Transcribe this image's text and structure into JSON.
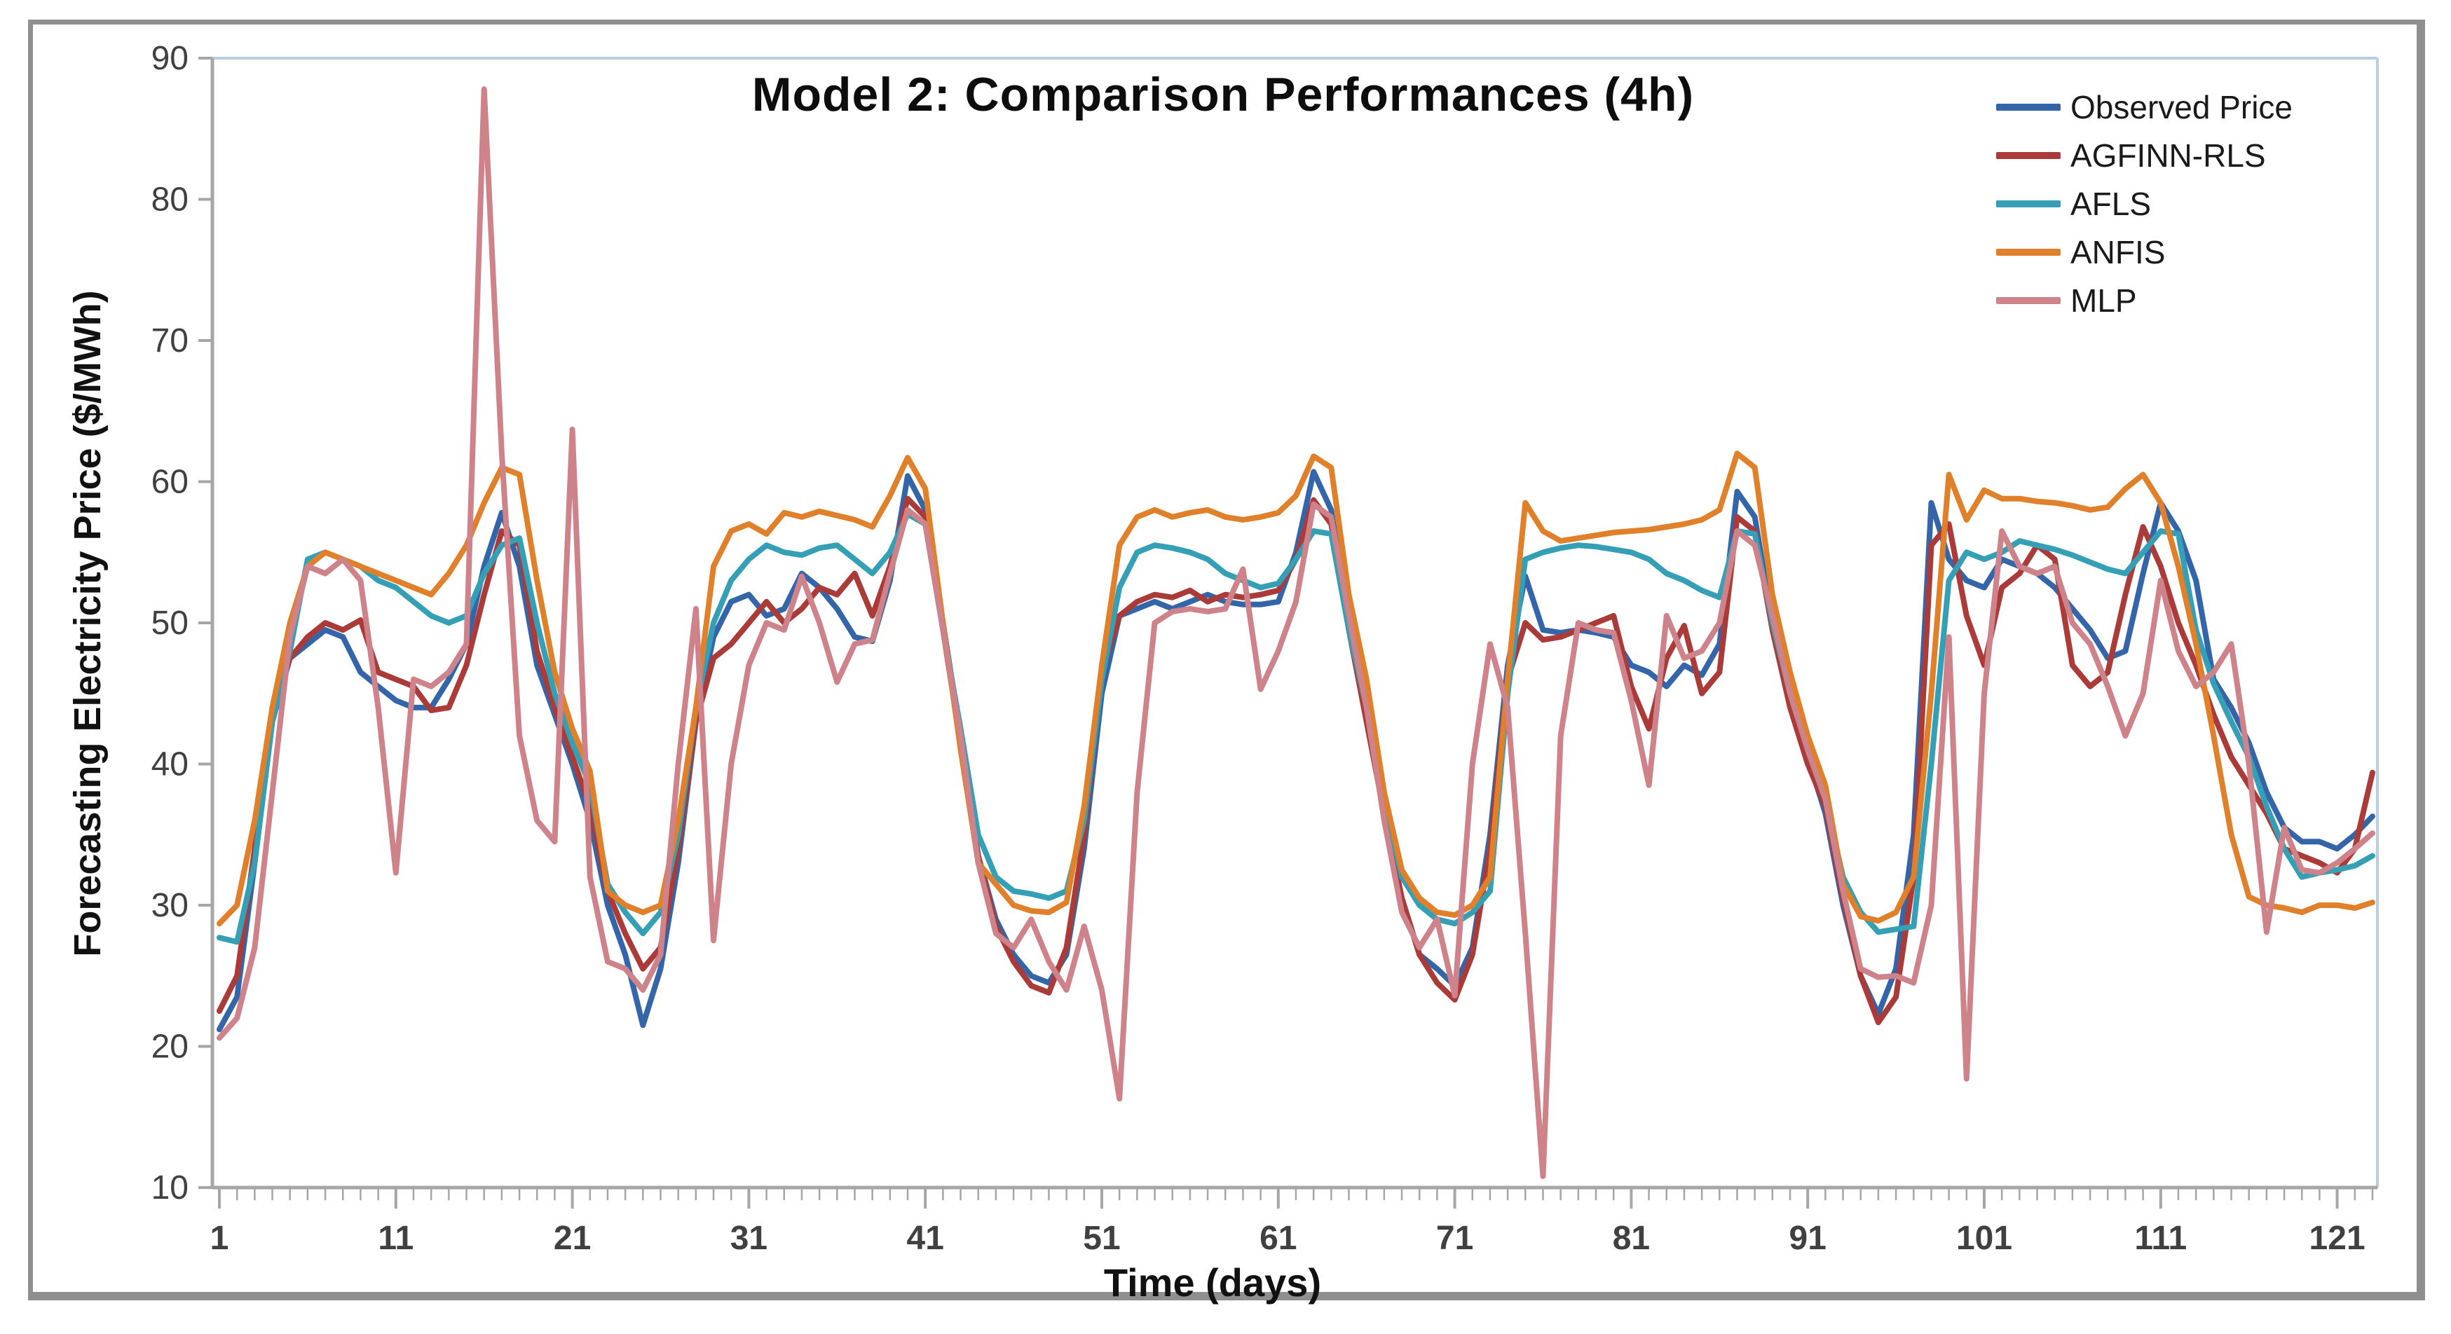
{
  "chart_data": {
    "type": "line",
    "title": "Model 2: Comparison Performances (4h)",
    "xlabel": "Time (days)",
    "ylabel": "Forecasting Electricity Price ($/MWh)",
    "xlim": [
      1,
      123
    ],
    "ylim": [
      10,
      90
    ],
    "x_ticks": [
      1,
      11,
      21,
      31,
      41,
      51,
      61,
      71,
      81,
      91,
      101,
      111,
      121
    ],
    "y_ticks": [
      10,
      20,
      30,
      40,
      50,
      60,
      70,
      80,
      90
    ],
    "x_minor_tick_interval": 1,
    "grid": false,
    "legend_position": "top-right",
    "series": [
      {
        "name": "Observed Price",
        "color": "#3465A8",
        "values": [
          21.2,
          23.5,
          33,
          43,
          47.5,
          48.5,
          49.5,
          49,
          46.5,
          45.5,
          44.5,
          44,
          44,
          46,
          48.5,
          54,
          57.8,
          54,
          47,
          43.5,
          40,
          36,
          30,
          26.5,
          21.5,
          25.5,
          33,
          43,
          49,
          51.5,
          52,
          50.5,
          51,
          53.5,
          52.5,
          51,
          49,
          48.7,
          53,
          60.4,
          58,
          50,
          42,
          33.5,
          29,
          26.5,
          25,
          24.5,
          26.5,
          34,
          45,
          50.5,
          51,
          51.5,
          51,
          51.5,
          52,
          51.5,
          51.3,
          51.3,
          51.5,
          55,
          60.7,
          58,
          50,
          43.5,
          36.5,
          30.5,
          26.5,
          25.5,
          24.3,
          27,
          35,
          47,
          53.3,
          49.5,
          49.3,
          49.5,
          49.3,
          49,
          47,
          46.5,
          45.5,
          47,
          46.3,
          48.5,
          59.3,
          57.5,
          50,
          44.5,
          40.5,
          36.5,
          30,
          25,
          22.3,
          25.5,
          35,
          58.5,
          54.5,
          53,
          52.5,
          54.5,
          54,
          53.5,
          52.5,
          51,
          49.5,
          47.5,
          48,
          53.5,
          58.5,
          56.5,
          53,
          46,
          44,
          41.5,
          38,
          35.5,
          34.5,
          34.5,
          34,
          35,
          36.3
        ]
      },
      {
        "name": "AGFINN-RLS",
        "color": "#AA3B39",
        "values": [
          22.5,
          25,
          34,
          44,
          47.5,
          49,
          50,
          49.5,
          50.2,
          46.5,
          46,
          45.5,
          43.8,
          44,
          47,
          52,
          56.5,
          55.5,
          48,
          44,
          40.5,
          37,
          31,
          28,
          25.5,
          27,
          34,
          43,
          47.5,
          48.5,
          50,
          51.5,
          50,
          51,
          52.5,
          52,
          53.5,
          50.5,
          54,
          58.8,
          57.5,
          49.5,
          41.5,
          33.5,
          28.5,
          26,
          24.3,
          23.8,
          27,
          35,
          46.5,
          50.5,
          51.5,
          52,
          51.8,
          52.3,
          51.5,
          52,
          51.8,
          52,
          52.3,
          54.5,
          58.7,
          57,
          49.5,
          43,
          36.5,
          30.5,
          26.5,
          24.5,
          23.3,
          26.5,
          34,
          46,
          50,
          48.8,
          49,
          49.5,
          50,
          50.5,
          45.5,
          42.5,
          47.5,
          49.8,
          45,
          46.5,
          57.5,
          56.5,
          49.5,
          44,
          40,
          37,
          30.5,
          25,
          21.7,
          23.5,
          32,
          55.5,
          57,
          50.5,
          47,
          52.5,
          53.5,
          55.5,
          54.5,
          47,
          45.5,
          46.5,
          52,
          56.8,
          54,
          50,
          47,
          43.5,
          40.5,
          38.5,
          36.5,
          34,
          33.5,
          33,
          32.3,
          34,
          39.4
        ]
      },
      {
        "name": "AFLS",
        "color": "#35A0B5",
        "values": [
          27.7,
          27.4,
          33,
          43,
          48,
          54.5,
          55,
          54.5,
          54,
          53,
          52.5,
          51.5,
          50.5,
          50,
          50.5,
          53.5,
          55.5,
          56,
          50,
          45,
          41.5,
          38.5,
          31.5,
          29.5,
          28,
          29.5,
          35,
          44,
          50,
          53,
          54.5,
          55.5,
          55,
          54.8,
          55.3,
          55.5,
          54.5,
          53.5,
          55,
          57.7,
          57,
          49.5,
          42.5,
          35,
          32,
          31,
          30.8,
          30.5,
          31,
          36,
          46,
          52.5,
          55,
          55.5,
          55.3,
          55,
          54.5,
          53.5,
          53,
          52.5,
          52.8,
          54.5,
          56.5,
          56.3,
          49.5,
          44,
          37.5,
          32,
          30,
          29,
          28.7,
          29.5,
          31,
          45,
          54.5,
          55,
          55.3,
          55.5,
          55.4,
          55.2,
          55,
          54.5,
          53.5,
          53,
          52.3,
          51.8,
          56.5,
          56.3,
          50,
          45,
          41,
          37.5,
          32,
          29.5,
          28.1,
          28.3,
          28.5,
          40,
          53,
          55,
          54.5,
          55,
          55.8,
          55.5,
          55.2,
          54.8,
          54.3,
          53.8,
          53.5,
          55,
          56.5,
          56.3,
          49.5,
          45.7,
          43,
          40.5,
          37,
          34,
          32,
          32.3,
          32.5,
          32.8,
          33.5
        ]
      },
      {
        "name": "ANFIS",
        "color": "#E0802B",
        "values": [
          28.7,
          30,
          36,
          44,
          50,
          54,
          55,
          54.5,
          54,
          53.5,
          53,
          52.5,
          52,
          53.5,
          55.5,
          58.5,
          61,
          60.5,
          53,
          46.5,
          42.5,
          39.5,
          31,
          30,
          29.5,
          30,
          36,
          44,
          54,
          56.5,
          57,
          56.3,
          57.8,
          57.5,
          57.9,
          57.6,
          57.3,
          56.8,
          59,
          61.7,
          59.5,
          50,
          41,
          33,
          31.5,
          30,
          29.6,
          29.5,
          30.2,
          37,
          47,
          55.5,
          57.5,
          58,
          57.5,
          57.8,
          58,
          57.5,
          57.3,
          57.5,
          57.8,
          59,
          61.8,
          61,
          52,
          46,
          38,
          32.5,
          30.5,
          29.5,
          29.3,
          30,
          32,
          46,
          58.5,
          56.5,
          55.8,
          56,
          56.2,
          56.4,
          56.5,
          56.6,
          56.8,
          57,
          57.3,
          58,
          62,
          61,
          52,
          46.5,
          42,
          38.5,
          31.5,
          29.2,
          28.9,
          29.5,
          32,
          45,
          60.5,
          57.3,
          59.4,
          58.8,
          58.8,
          58.6,
          58.5,
          58.3,
          58,
          58.2,
          59.5,
          60.5,
          58.5,
          54,
          48.5,
          42,
          35,
          30.6,
          30,
          29.8,
          29.5,
          30,
          30,
          29.8,
          30.2
        ]
      },
      {
        "name": "MLP",
        "color": "#CE8289",
        "values": [
          20.6,
          22,
          27,
          38,
          49,
          54,
          53.5,
          54.5,
          53,
          44,
          32.3,
          46,
          45.5,
          46.5,
          48.5,
          87.8,
          62,
          42,
          36,
          34.5,
          63.7,
          32,
          26,
          25.5,
          24,
          26.5,
          40,
          51,
          27.5,
          40,
          47,
          50,
          49.5,
          53.3,
          50,
          45.8,
          48.5,
          48.8,
          53.5,
          58,
          57,
          49.5,
          42,
          33,
          28,
          27,
          29,
          26,
          24,
          28.5,
          24,
          16.3,
          38,
          50,
          50.8,
          51,
          50.8,
          51,
          53.8,
          45.3,
          48,
          51.5,
          58.4,
          57.5,
          50.5,
          44,
          36,
          29.5,
          27,
          29,
          23.6,
          40,
          48.5,
          44,
          28,
          10.8,
          42,
          50,
          49.5,
          49.3,
          44.5,
          38.5,
          50.5,
          47.5,
          48,
          50,
          56.5,
          55.5,
          50.5,
          45,
          41,
          37.5,
          31,
          25.5,
          24.9,
          25,
          24.5,
          30,
          49,
          17.7,
          45,
          56.5,
          54,
          53.5,
          54,
          50,
          48.5,
          45.5,
          42,
          45,
          53,
          48,
          45.5,
          46.5,
          48.5,
          40,
          28.1,
          35.5,
          32.5,
          32.3,
          33,
          34,
          35.1
        ]
      }
    ]
  },
  "colors": {
    "axis_line": "#a6a6a6",
    "plot_frame": "#b9cde6",
    "figure_border": "#8f8f8f",
    "tick_label": "#404040",
    "title_text": "#0d0d0d"
  }
}
